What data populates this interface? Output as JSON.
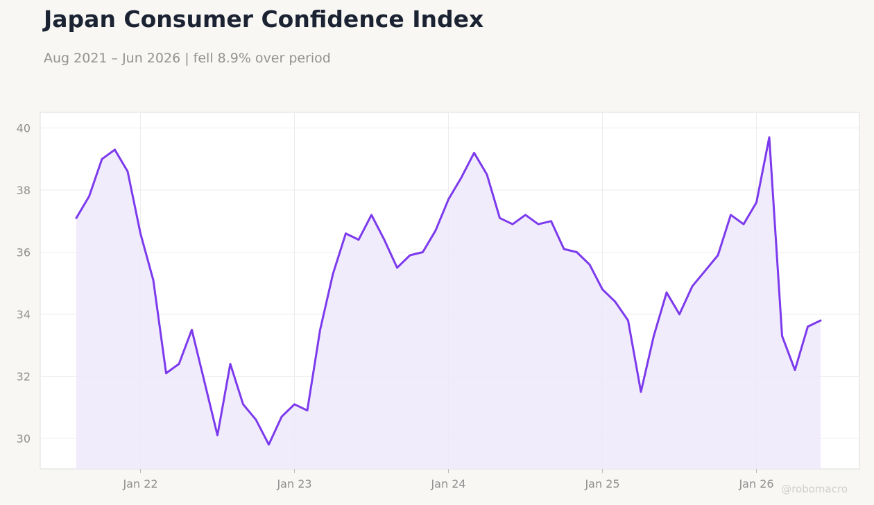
{
  "header": {
    "title": "Japan Consumer Confidence Index",
    "subtitle": "Aug 2021 – Jun 2026 | fell 8.9% over period"
  },
  "watermark": "@robomacro",
  "colors": {
    "line": "#7c3aed",
    "fill": "#efe9fc",
    "grid": "#ececec",
    "plot_background": "#ffffff",
    "page_background": "#f8f7f4"
  },
  "chart_data": {
    "type": "area",
    "x_start": "2021-08",
    "x_end": "2026-06",
    "frequency": "monthly",
    "ylim": [
      29,
      40.5
    ],
    "y_ticks": [
      30,
      32,
      34,
      36,
      38,
      40
    ],
    "x_ticks": [
      {
        "label": "Jan 22",
        "date": "2022-01"
      },
      {
        "label": "Jan 23",
        "date": "2023-01"
      },
      {
        "label": "Jan 24",
        "date": "2024-01"
      },
      {
        "label": "Jan 25",
        "date": "2025-01"
      },
      {
        "label": "Jan 26",
        "date": "2026-01"
      }
    ],
    "grid": true,
    "legend": "none",
    "series": [
      {
        "dates": [
          "2021-08",
          "2021-09",
          "2021-10",
          "2021-11",
          "2021-12",
          "2022-01",
          "2022-02",
          "2022-03",
          "2022-04",
          "2022-05",
          "2022-06",
          "2022-07",
          "2022-08",
          "2022-09",
          "2022-10",
          "2022-11",
          "2022-12",
          "2023-01",
          "2023-02",
          "2023-03",
          "2023-04",
          "2023-05",
          "2023-06",
          "2023-07",
          "2023-08",
          "2023-09",
          "2023-10",
          "2023-11",
          "2023-12",
          "2024-01",
          "2024-02",
          "2024-03",
          "2024-04",
          "2024-05",
          "2024-06",
          "2024-07",
          "2024-08",
          "2024-09",
          "2024-10",
          "2024-11",
          "2024-12",
          "2025-01",
          "2025-02",
          "2025-03",
          "2025-04",
          "2025-05",
          "2025-06",
          "2025-07",
          "2025-08",
          "2025-09",
          "2025-10",
          "2025-11",
          "2025-12",
          "2026-01",
          "2026-02",
          "2026-03",
          "2026-04",
          "2026-05",
          "2026-06"
        ],
        "values": [
          37.1,
          37.8,
          39.0,
          39.3,
          38.6,
          36.6,
          35.1,
          32.1,
          32.4,
          33.5,
          31.8,
          30.1,
          32.4,
          31.1,
          30.6,
          29.8,
          30.7,
          31.1,
          30.9,
          33.5,
          35.3,
          36.6,
          36.4,
          37.2,
          36.4,
          35.5,
          35.9,
          36.0,
          36.7,
          37.7,
          38.4,
          39.2,
          38.5,
          37.1,
          36.9,
          37.2,
          36.9,
          37.0,
          36.1,
          36.0,
          35.6,
          34.8,
          34.4,
          33.8,
          31.5,
          33.3,
          34.7,
          34.0,
          34.9,
          35.4,
          35.9,
          37.2,
          36.9,
          37.6,
          39.7,
          33.3,
          32.2,
          33.6,
          33.8
        ]
      }
    ]
  }
}
